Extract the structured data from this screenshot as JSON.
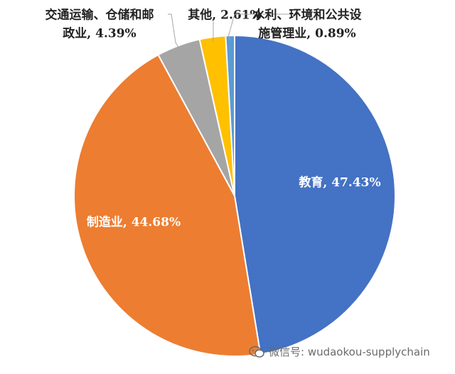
{
  "chart_data": {
    "type": "pie",
    "slices": [
      {
        "label": "教育",
        "value": 47.43,
        "display": "教育, 47.43%",
        "color": "#4472C4",
        "label_color": "#ffffff",
        "inside": true
      },
      {
        "label": "制造业",
        "value": 44.68,
        "display": "制造业, 44.68%",
        "color": "#ED7D31",
        "label_color": "#ffffff",
        "inside": true
      },
      {
        "label": "交通运输、仓储和邮政业",
        "value": 4.39,
        "display_lines": [
          "交通运输、仓储和邮",
          "政业, 4.39%"
        ],
        "color": "#A5A5A5",
        "label_color": "#222222",
        "inside": false
      },
      {
        "label": "其他",
        "value": 2.61,
        "display_lines": [
          "其他, 2.61%"
        ],
        "color": "#FFC000",
        "label_color": "#222222",
        "inside": false
      },
      {
        "label": "水利、环境和公共设施管理业",
        "value": 0.89,
        "display_lines": [
          "水利、环境和公共设",
          "施管理业, 0.89%"
        ],
        "color": "#5B9BD5",
        "label_color": "#222222",
        "inside": false
      }
    ]
  },
  "watermark": {
    "text": "微信号: wudaokou-supplychain",
    "icon": "wechat-icon"
  }
}
